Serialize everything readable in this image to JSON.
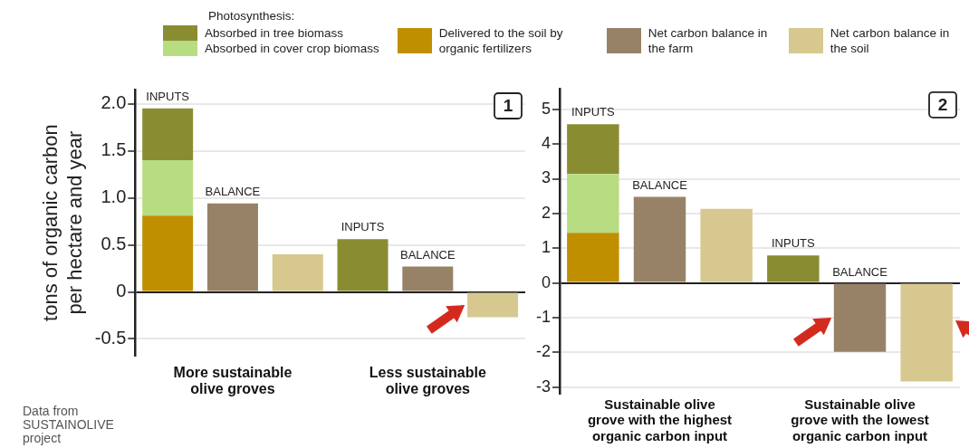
{
  "chart_data": [
    {
      "type": "bar",
      "stacked": true,
      "ylabel": "tons of organic carbon per hectare and year",
      "legend_title": "Photosynthesis:",
      "legend": "top",
      "grid": "y",
      "categories": [
        null,
        "More sustainable olive groves",
        null,
        null,
        "Less sustainable olive groves",
        null
      ],
      "ylim": [
        -0.68,
        2.15
      ],
      "yticks": [
        {
          "value": -0.5,
          "label": "-0.5"
        },
        0,
        {
          "value": 0.5,
          "label": "0.5"
        },
        {
          "value": 1,
          "label": "1.0"
        },
        {
          "value": 1.5,
          "label": "1.5"
        },
        {
          "value": 2,
          "label": "2.0"
        }
      ],
      "series": [
        {
          "name": "Delivered to the soil by organic fertilizers",
          "color": "#c08f00",
          "values": [
            0.81,
            null,
            null,
            null,
            null,
            null
          ]
        },
        {
          "name": "Absorbed in cover crop biomass",
          "color": "#b8dc82",
          "values": [
            0.59,
            null,
            null,
            null,
            null,
            null
          ]
        },
        {
          "name": "Absorbed in tree biomass",
          "color": "#8a8c32",
          "values": [
            0.55,
            null,
            null,
            0.56,
            null,
            null
          ],
          "value_labels": [
            "INPUTS",
            null,
            null,
            "INPUTS",
            null,
            null
          ]
        },
        {
          "name": "Net carbon balance in the farm",
          "color": "#978268",
          "values": [
            null,
            0.94,
            null,
            null,
            0.27,
            null
          ],
          "value_labels": [
            null,
            "BALANCE",
            null,
            null,
            "BALANCE",
            null
          ]
        },
        {
          "name": "Net carbon balance in the soil",
          "color": "#d6c88f",
          "values": [
            null,
            null,
            0.4,
            null,
            null,
            -0.27
          ]
        }
      ],
      "annotations": [
        "1",
        "Data from SUSTAINOLIVE project"
      ]
    },
    {
      "type": "bar",
      "stacked": true,
      "grid": "y",
      "categories": [
        null,
        "Sustainable olive grove with the highest organic carbon input",
        null,
        null,
        "Sustainable olive grove with the lowest organic carbon input",
        null
      ],
      "ylim": [
        -3.2,
        5.6
      ],
      "yticks": [
        -3,
        -2,
        -1,
        0,
        1,
        2,
        3,
        4,
        5
      ],
      "series": [
        {
          "color": "#c08f00",
          "values": [
            1.44,
            null,
            null,
            null,
            null,
            null
          ]
        },
        {
          "color": "#b8dc82",
          "values": [
            1.7,
            null,
            null,
            null,
            null,
            null
          ]
        },
        {
          "color": "#8a8c32",
          "values": [
            1.43,
            null,
            null,
            0.79,
            null,
            null
          ],
          "value_labels": [
            "INPUTS",
            null,
            null,
            "INPUTS",
            null,
            null
          ]
        },
        {
          "color": "#978268",
          "values": [
            null,
            2.48,
            null,
            null,
            -1.99,
            null
          ],
          "value_labels": [
            null,
            "BALANCE",
            null,
            null,
            "BALANCE",
            null
          ]
        },
        {
          "color": "#d6c88f",
          "values": [
            null,
            null,
            2.13,
            null,
            null,
            -2.84
          ]
        }
      ],
      "annotations": [
        "2"
      ]
    }
  ]
}
